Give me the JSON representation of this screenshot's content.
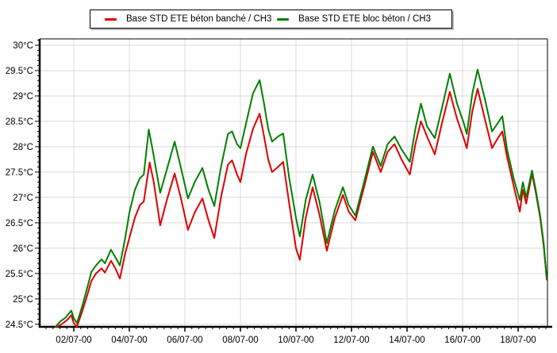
{
  "window": {
    "background": "#ffffff"
  },
  "chart_data": {
    "type": "line",
    "title": "",
    "xlabel": "",
    "ylabel": "",
    "grid": true,
    "legend_position": "top",
    "plot": {
      "background": "#ffffff",
      "gridline_color": "#d9d9d9",
      "axis_color": "#000000"
    },
    "x_axis": {
      "range": [
        0.771,
        19.057
      ],
      "unit": "date",
      "tick_days": [
        2,
        4,
        6,
        8,
        10,
        12,
        14,
        16,
        18
      ],
      "tick_labels": [
        "02/07-00",
        "04/07-00",
        "06/07-00",
        "08/07-00",
        "10/07-00",
        "12/07-00",
        "14/07-00",
        "16/07-00",
        "18/07-00"
      ],
      "minor_step": 0.25
    },
    "y_axis": {
      "range": [
        24.45,
        30.125
      ],
      "unit": "°C",
      "tick_values": [
        24.5,
        25,
        25.5,
        26,
        26.5,
        27,
        27.5,
        28,
        28.5,
        29,
        29.5,
        30
      ],
      "tick_labels": [
        "24.5°C",
        "25°C",
        "25.5°C",
        "26°C",
        "26.5°C",
        "27°C",
        "27.5°C",
        "28°C",
        "28.5°C",
        "29°C",
        "29.5°C",
        "30°C"
      ],
      "minor_step": 0.1
    },
    "series": [
      {
        "name": "Base STD ETE béton banché / CH3",
        "color": "#dd0000",
        "points": [
          [
            1.4,
            24.45
          ],
          [
            1.55,
            24.5
          ],
          [
            1.75,
            24.58
          ],
          [
            1.91,
            24.68
          ],
          [
            2.0,
            24.52
          ],
          [
            2.11,
            24.45
          ],
          [
            2.3,
            24.75
          ],
          [
            2.5,
            25.1
          ],
          [
            2.63,
            25.35
          ],
          [
            2.8,
            25.5
          ],
          [
            3.0,
            25.6
          ],
          [
            3.12,
            25.52
          ],
          [
            3.34,
            25.75
          ],
          [
            3.5,
            25.6
          ],
          [
            3.66,
            25.4
          ],
          [
            3.85,
            25.9
          ],
          [
            4.0,
            26.2
          ],
          [
            4.2,
            26.6
          ],
          [
            4.38,
            26.85
          ],
          [
            4.52,
            26.92
          ],
          [
            4.73,
            27.69
          ],
          [
            4.88,
            27.3
          ],
          [
            5.11,
            26.45
          ],
          [
            5.35,
            26.95
          ],
          [
            5.63,
            27.47
          ],
          [
            5.85,
            27.0
          ],
          [
            6.11,
            26.36
          ],
          [
            6.35,
            26.7
          ],
          [
            6.63,
            26.98
          ],
          [
            6.85,
            26.55
          ],
          [
            7.06,
            26.2
          ],
          [
            7.3,
            27.0
          ],
          [
            7.55,
            27.65
          ],
          [
            7.7,
            27.73
          ],
          [
            7.88,
            27.45
          ],
          [
            8.0,
            27.3
          ],
          [
            8.2,
            27.85
          ],
          [
            8.45,
            28.35
          ],
          [
            8.69,
            28.65
          ],
          [
            8.85,
            28.2
          ],
          [
            9.0,
            27.75
          ],
          [
            9.14,
            27.5
          ],
          [
            9.35,
            27.6
          ],
          [
            9.54,
            27.7
          ],
          [
            9.75,
            26.9
          ],
          [
            10.0,
            26.0
          ],
          [
            10.14,
            25.77
          ],
          [
            10.35,
            26.6
          ],
          [
            10.6,
            27.2
          ],
          [
            10.85,
            26.65
          ],
          [
            11.11,
            25.95
          ],
          [
            11.4,
            26.6
          ],
          [
            11.69,
            27.05
          ],
          [
            11.9,
            26.72
          ],
          [
            12.14,
            26.55
          ],
          [
            12.45,
            27.2
          ],
          [
            12.77,
            27.9
          ],
          [
            13.05,
            27.5
          ],
          [
            13.3,
            27.9
          ],
          [
            13.55,
            28.05
          ],
          [
            13.8,
            27.75
          ],
          [
            14.1,
            27.45
          ],
          [
            14.3,
            28.05
          ],
          [
            14.5,
            28.5
          ],
          [
            14.72,
            28.2
          ],
          [
            15.0,
            27.85
          ],
          [
            15.25,
            28.45
          ],
          [
            15.54,
            29.08
          ],
          [
            15.8,
            28.55
          ],
          [
            16.05,
            28.15
          ],
          [
            16.15,
            27.97
          ],
          [
            16.35,
            28.7
          ],
          [
            16.54,
            29.14
          ],
          [
            16.8,
            28.55
          ],
          [
            17.06,
            27.97
          ],
          [
            17.25,
            28.15
          ],
          [
            17.43,
            28.3
          ],
          [
            17.6,
            27.8
          ],
          [
            17.85,
            27.2
          ],
          [
            18.06,
            26.72
          ],
          [
            18.17,
            27.15
          ],
          [
            18.29,
            26.88
          ],
          [
            18.5,
            27.47
          ],
          [
            18.65,
            27.05
          ],
          [
            18.8,
            26.58
          ],
          [
            18.92,
            26.05
          ],
          [
            19.03,
            25.38
          ]
        ]
      },
      {
        "name": "Base STD ETE bloc béton / CH3",
        "color": "#008000",
        "points": [
          [
            1.34,
            24.45
          ],
          [
            1.5,
            24.55
          ],
          [
            1.7,
            24.63
          ],
          [
            1.91,
            24.77
          ],
          [
            2.0,
            24.62
          ],
          [
            2.11,
            24.52
          ],
          [
            2.3,
            24.85
          ],
          [
            2.5,
            25.25
          ],
          [
            2.63,
            25.53
          ],
          [
            2.8,
            25.66
          ],
          [
            3.0,
            25.78
          ],
          [
            3.12,
            25.7
          ],
          [
            3.34,
            25.97
          ],
          [
            3.5,
            25.82
          ],
          [
            3.66,
            25.66
          ],
          [
            3.85,
            26.2
          ],
          [
            4.0,
            26.7
          ],
          [
            4.2,
            27.15
          ],
          [
            4.38,
            27.38
          ],
          [
            4.52,
            27.45
          ],
          [
            4.7,
            28.34
          ],
          [
            4.85,
            27.9
          ],
          [
            5.11,
            27.09
          ],
          [
            5.35,
            27.55
          ],
          [
            5.63,
            28.1
          ],
          [
            5.85,
            27.6
          ],
          [
            6.11,
            26.98
          ],
          [
            6.35,
            27.3
          ],
          [
            6.63,
            27.58
          ],
          [
            6.85,
            27.15
          ],
          [
            7.06,
            26.83
          ],
          [
            7.3,
            27.6
          ],
          [
            7.55,
            28.25
          ],
          [
            7.7,
            28.3
          ],
          [
            7.88,
            28.05
          ],
          [
            8.0,
            27.97
          ],
          [
            8.2,
            28.45
          ],
          [
            8.45,
            29.05
          ],
          [
            8.69,
            29.31
          ],
          [
            8.85,
            28.85
          ],
          [
            9.0,
            28.35
          ],
          [
            9.14,
            28.1
          ],
          [
            9.35,
            28.2
          ],
          [
            9.54,
            28.26
          ],
          [
            9.75,
            27.4
          ],
          [
            10.0,
            26.6
          ],
          [
            10.14,
            26.23
          ],
          [
            10.35,
            26.95
          ],
          [
            10.6,
            27.45
          ],
          [
            10.85,
            26.9
          ],
          [
            11.11,
            26.1
          ],
          [
            11.4,
            26.75
          ],
          [
            11.69,
            27.2
          ],
          [
            11.9,
            26.85
          ],
          [
            12.14,
            26.64
          ],
          [
            12.45,
            27.3
          ],
          [
            12.77,
            28.0
          ],
          [
            13.05,
            27.62
          ],
          [
            13.3,
            28.05
          ],
          [
            13.55,
            28.2
          ],
          [
            13.8,
            27.95
          ],
          [
            14.1,
            27.7
          ],
          [
            14.3,
            28.35
          ],
          [
            14.5,
            28.85
          ],
          [
            14.72,
            28.4
          ],
          [
            15.0,
            28.17
          ],
          [
            15.25,
            28.75
          ],
          [
            15.54,
            29.44
          ],
          [
            15.8,
            28.85
          ],
          [
            16.05,
            28.45
          ],
          [
            16.15,
            28.25
          ],
          [
            16.35,
            29.05
          ],
          [
            16.54,
            29.52
          ],
          [
            16.8,
            28.95
          ],
          [
            17.06,
            28.3
          ],
          [
            17.25,
            28.45
          ],
          [
            17.43,
            28.6
          ],
          [
            17.6,
            27.95
          ],
          [
            17.85,
            27.35
          ],
          [
            18.06,
            26.95
          ],
          [
            18.17,
            27.3
          ],
          [
            18.29,
            27.0
          ],
          [
            18.5,
            27.53
          ],
          [
            18.65,
            27.1
          ],
          [
            18.8,
            26.62
          ],
          [
            18.92,
            26.1
          ],
          [
            19.03,
            25.4
          ]
        ]
      }
    ]
  }
}
